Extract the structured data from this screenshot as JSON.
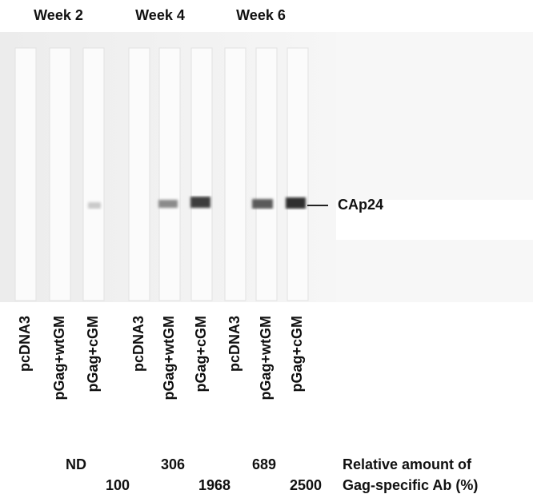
{
  "week_labels": [
    "Week 2",
    "Week 4",
    "Week 6"
  ],
  "lane_labels": [
    "pcDNA3",
    "pGag+wtGM",
    "pGag+cGM",
    "pcDNA3",
    "pGag+wtGM",
    "pGag+cGM",
    "pcDNA3",
    "pGag+wtGM",
    "pGag+cGM"
  ],
  "band_label": "CAp24",
  "quantification": {
    "row1": [
      "ND",
      306,
      689
    ],
    "row2": [
      100,
      1968,
      2500
    ],
    "caption": [
      "Relative amount of",
      "Gag-specific Ab (%)"
    ]
  }
}
